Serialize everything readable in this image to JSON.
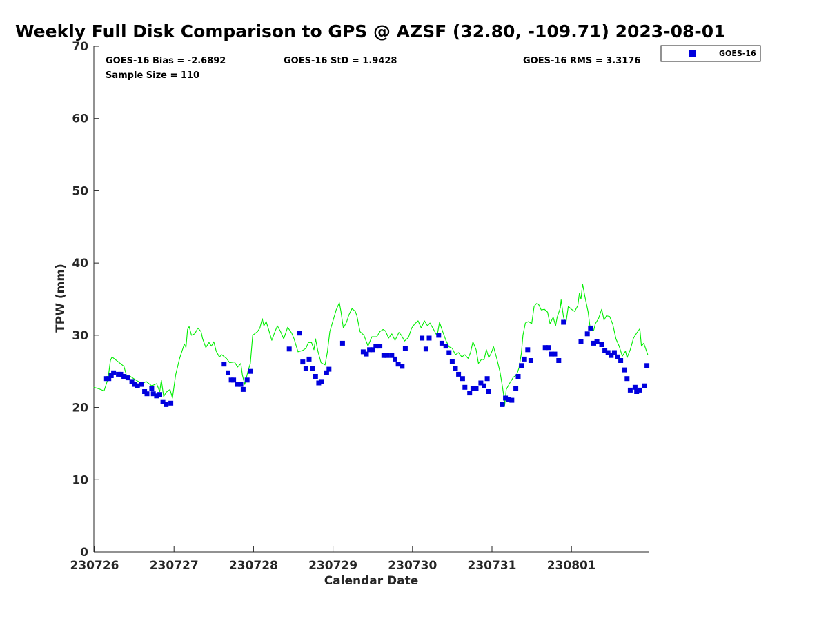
{
  "chart_data": {
    "type": "scatter",
    "title": "Weekly Full Disk Comparison to GPS @ AZSF (32.80, -109.71) 2023-08-01",
    "xlabel": "Calendar Date",
    "ylabel": "TPW (mm)",
    "xlim": [
      0,
      7
    ],
    "ylim": [
      0,
      70
    ],
    "yticks": [
      0,
      10,
      20,
      30,
      40,
      50,
      60,
      70
    ],
    "xtick_positions": [
      0,
      1,
      2,
      3,
      4,
      5,
      6
    ],
    "xtick_labels": [
      "230726",
      "230727",
      "230728",
      "230729",
      "230730",
      "230731",
      "230801"
    ],
    "stats": {
      "bias": "GOES-16 Bias = -2.6892",
      "std": "GOES-16 StD = 1.9428",
      "rms": "GOES-16 RMS = 3.3176",
      "sample": "Sample Size = 110"
    },
    "legend": {
      "label": "GOES-16",
      "location": "top-right (outside plot)"
    },
    "colors": {
      "goes": "#0000dd",
      "gps": "#00ee00",
      "axis": "#262626"
    },
    "series": [
      {
        "name": "GPS",
        "style": "line",
        "points": [
          [
            -0.01,
            22.8
          ],
          [
            0.05,
            22.6
          ],
          [
            0.12,
            22.3
          ],
          [
            0.17,
            24.0
          ],
          [
            0.2,
            26.5
          ],
          [
            0.22,
            27.0
          ],
          [
            0.3,
            26.3
          ],
          [
            0.37,
            25.7
          ],
          [
            0.4,
            24.5
          ],
          [
            0.45,
            24.3
          ],
          [
            0.52,
            23.8
          ],
          [
            0.6,
            23.3
          ],
          [
            0.65,
            23.6
          ],
          [
            0.72,
            23.0
          ],
          [
            0.78,
            23.3
          ],
          [
            0.82,
            22.2
          ],
          [
            0.84,
            23.8
          ],
          [
            0.87,
            21.5
          ],
          [
            0.9,
            22.1
          ],
          [
            0.95,
            22.5
          ],
          [
            0.98,
            21.3
          ],
          [
            1.02,
            24.5
          ],
          [
            1.07,
            26.8
          ],
          [
            1.13,
            28.8
          ],
          [
            1.15,
            28.3
          ],
          [
            1.17,
            30.8
          ],
          [
            1.19,
            31.2
          ],
          [
            1.22,
            30.0
          ],
          [
            1.26,
            30.2
          ],
          [
            1.3,
            31.0
          ],
          [
            1.34,
            30.5
          ],
          [
            1.36,
            29.5
          ],
          [
            1.4,
            28.3
          ],
          [
            1.44,
            29.0
          ],
          [
            1.47,
            28.5
          ],
          [
            1.5,
            29.1
          ],
          [
            1.53,
            27.8
          ],
          [
            1.57,
            27.0
          ],
          [
            1.6,
            27.3
          ],
          [
            1.66,
            26.8
          ],
          [
            1.7,
            26.2
          ],
          [
            1.76,
            26.3
          ],
          [
            1.8,
            25.6
          ],
          [
            1.84,
            26.1
          ],
          [
            1.86,
            24.5
          ],
          [
            1.89,
            23.2
          ],
          [
            1.93,
            25.0
          ],
          [
            1.96,
            26.1
          ],
          [
            1.99,
            30.0
          ],
          [
            2.05,
            30.5
          ],
          [
            2.08,
            31.0
          ],
          [
            2.11,
            32.3
          ],
          [
            2.13,
            31.3
          ],
          [
            2.16,
            31.9
          ],
          [
            2.19,
            30.8
          ],
          [
            2.23,
            29.3
          ],
          [
            2.27,
            30.5
          ],
          [
            2.3,
            31.3
          ],
          [
            2.34,
            30.5
          ],
          [
            2.38,
            29.5
          ],
          [
            2.43,
            31.1
          ],
          [
            2.48,
            30.3
          ],
          [
            2.51,
            29.5
          ],
          [
            2.56,
            27.7
          ],
          [
            2.62,
            27.9
          ],
          [
            2.66,
            28.2
          ],
          [
            2.69,
            29.0
          ],
          [
            2.73,
            29.0
          ],
          [
            2.76,
            28.0
          ],
          [
            2.78,
            29.5
          ],
          [
            2.81,
            27.8
          ],
          [
            2.85,
            26.2
          ],
          [
            2.9,
            25.9
          ],
          [
            2.93,
            27.7
          ],
          [
            2.96,
            30.5
          ],
          [
            3.0,
            32.0
          ],
          [
            3.04,
            33.5
          ],
          [
            3.08,
            34.5
          ],
          [
            3.1,
            33.3
          ],
          [
            3.13,
            31.0
          ],
          [
            3.17,
            31.8
          ],
          [
            3.2,
            32.8
          ],
          [
            3.24,
            33.7
          ],
          [
            3.28,
            33.3
          ],
          [
            3.3,
            32.7
          ],
          [
            3.34,
            30.5
          ],
          [
            3.39,
            30.0
          ],
          [
            3.44,
            28.5
          ],
          [
            3.49,
            29.8
          ],
          [
            3.55,
            29.8
          ],
          [
            3.59,
            30.5
          ],
          [
            3.63,
            30.8
          ],
          [
            3.66,
            30.6
          ],
          [
            3.7,
            29.6
          ],
          [
            3.74,
            30.2
          ],
          [
            3.78,
            29.3
          ],
          [
            3.83,
            30.4
          ],
          [
            3.86,
            30.0
          ],
          [
            3.9,
            29.2
          ],
          [
            3.95,
            29.7
          ],
          [
            3.99,
            31.0
          ],
          [
            4.03,
            31.6
          ],
          [
            4.07,
            32.0
          ],
          [
            4.11,
            31.0
          ],
          [
            4.15,
            32.0
          ],
          [
            4.19,
            31.3
          ],
          [
            4.22,
            31.7
          ],
          [
            4.26,
            30.9
          ],
          [
            4.31,
            29.9
          ],
          [
            4.34,
            31.8
          ],
          [
            4.38,
            30.5
          ],
          [
            4.42,
            29.3
          ],
          [
            4.46,
            28.4
          ],
          [
            4.5,
            28.2
          ],
          [
            4.54,
            27.3
          ],
          [
            4.58,
            27.6
          ],
          [
            4.62,
            27.0
          ],
          [
            4.66,
            27.3
          ],
          [
            4.7,
            26.8
          ],
          [
            4.73,
            27.6
          ],
          [
            4.76,
            29.1
          ],
          [
            4.8,
            28.0
          ],
          [
            4.83,
            26.1
          ],
          [
            4.87,
            26.7
          ],
          [
            4.9,
            26.6
          ],
          [
            4.93,
            28.0
          ],
          [
            4.96,
            26.9
          ],
          [
            4.99,
            27.5
          ],
          [
            5.02,
            28.4
          ],
          [
            5.06,
            26.8
          ],
          [
            5.1,
            25.0
          ],
          [
            5.13,
            23.0
          ],
          [
            5.15,
            21.5
          ],
          [
            5.16,
            20.3
          ],
          [
            5.18,
            22.5
          ],
          [
            5.23,
            23.5
          ],
          [
            5.27,
            24.2
          ],
          [
            5.31,
            24.5
          ],
          [
            5.34,
            25.5
          ],
          [
            5.37,
            27.5
          ],
          [
            5.39,
            30.0
          ],
          [
            5.42,
            31.7
          ],
          [
            5.46,
            31.9
          ],
          [
            5.5,
            31.6
          ],
          [
            5.53,
            34.0
          ],
          [
            5.56,
            34.4
          ],
          [
            5.59,
            34.2
          ],
          [
            5.62,
            33.5
          ],
          [
            5.66,
            33.6
          ],
          [
            5.7,
            33.2
          ],
          [
            5.73,
            31.6
          ],
          [
            5.77,
            32.5
          ],
          [
            5.8,
            31.3
          ],
          [
            5.82,
            32.5
          ],
          [
            5.86,
            33.8
          ],
          [
            5.87,
            34.9
          ],
          [
            5.9,
            32.5
          ],
          [
            5.93,
            31.6
          ],
          [
            5.96,
            34.0
          ],
          [
            6.0,
            33.6
          ],
          [
            6.04,
            33.3
          ],
          [
            6.08,
            34.1
          ],
          [
            6.1,
            35.8
          ],
          [
            6.12,
            35.0
          ],
          [
            6.14,
            37.1
          ],
          [
            6.17,
            35.3
          ],
          [
            6.21,
            33.2
          ],
          [
            6.24,
            30.6
          ],
          [
            6.28,
            30.7
          ],
          [
            6.3,
            31.6
          ],
          [
            6.34,
            32.3
          ],
          [
            6.38,
            33.6
          ],
          [
            6.41,
            32.1
          ],
          [
            6.44,
            32.7
          ],
          [
            6.48,
            32.6
          ],
          [
            6.52,
            31.5
          ],
          [
            6.56,
            29.5
          ],
          [
            6.6,
            28.5
          ],
          [
            6.64,
            27.1
          ],
          [
            6.68,
            27.8
          ],
          [
            6.7,
            26.9
          ],
          [
            6.74,
            28.0
          ],
          [
            6.78,
            29.6
          ],
          [
            6.82,
            30.3
          ],
          [
            6.86,
            30.9
          ],
          [
            6.88,
            28.5
          ],
          [
            6.91,
            28.9
          ],
          [
            6.96,
            27.3
          ]
        ]
      },
      {
        "name": "GOES-16",
        "style": "marker",
        "points": [
          [
            0.15,
            24.0
          ],
          [
            0.18,
            24.0
          ],
          [
            0.21,
            24.4
          ],
          [
            0.24,
            24.8
          ],
          [
            0.3,
            24.6
          ],
          [
            0.33,
            24.6
          ],
          [
            0.37,
            24.3
          ],
          [
            0.42,
            24.1
          ],
          [
            0.47,
            23.6
          ],
          [
            0.5,
            23.2
          ],
          [
            0.54,
            23.0
          ],
          [
            0.59,
            23.2
          ],
          [
            0.63,
            22.2
          ],
          [
            0.66,
            21.9
          ],
          [
            0.72,
            22.6
          ],
          [
            0.74,
            21.9
          ],
          [
            0.78,
            21.6
          ],
          [
            0.82,
            21.8
          ],
          [
            0.86,
            20.8
          ],
          [
            0.9,
            20.4
          ],
          [
            0.96,
            20.6
          ],
          [
            1.63,
            26.0
          ],
          [
            1.68,
            24.8
          ],
          [
            1.72,
            23.8
          ],
          [
            1.75,
            23.8
          ],
          [
            1.8,
            23.2
          ],
          [
            1.84,
            23.2
          ],
          [
            1.87,
            22.5
          ],
          [
            1.92,
            23.8
          ],
          [
            1.96,
            25.0
          ],
          [
            2.45,
            28.1
          ],
          [
            2.58,
            30.3
          ],
          [
            2.62,
            26.3
          ],
          [
            2.66,
            25.4
          ],
          [
            2.7,
            26.7
          ],
          [
            2.74,
            25.4
          ],
          [
            2.78,
            24.3
          ],
          [
            2.82,
            23.4
          ],
          [
            2.86,
            23.6
          ],
          [
            2.92,
            24.8
          ],
          [
            2.95,
            25.3
          ],
          [
            3.12,
            28.9
          ],
          [
            3.38,
            27.7
          ],
          [
            3.42,
            27.4
          ],
          [
            3.46,
            28.0
          ],
          [
            3.5,
            28.0
          ],
          [
            3.54,
            28.5
          ],
          [
            3.59,
            28.5
          ],
          [
            3.64,
            27.2
          ],
          [
            3.68,
            27.2
          ],
          [
            3.74,
            27.2
          ],
          [
            3.78,
            26.7
          ],
          [
            3.82,
            26.0
          ],
          [
            3.87,
            25.7
          ],
          [
            3.91,
            28.2
          ],
          [
            4.12,
            29.6
          ],
          [
            4.17,
            28.1
          ],
          [
            4.21,
            29.6
          ],
          [
            4.33,
            30.0
          ],
          [
            4.37,
            28.9
          ],
          [
            4.42,
            28.5
          ],
          [
            4.46,
            27.6
          ],
          [
            4.5,
            26.4
          ],
          [
            4.54,
            25.4
          ],
          [
            4.58,
            24.6
          ],
          [
            4.63,
            24.0
          ],
          [
            4.66,
            22.8
          ],
          [
            4.72,
            22.0
          ],
          [
            4.76,
            22.6
          ],
          [
            4.8,
            22.6
          ],
          [
            4.86,
            23.4
          ],
          [
            4.9,
            23.0
          ],
          [
            4.94,
            24.0
          ],
          [
            4.96,
            22.2
          ],
          [
            5.13,
            20.4
          ],
          [
            5.17,
            21.3
          ],
          [
            5.21,
            21.1
          ],
          [
            5.25,
            21.0
          ],
          [
            5.3,
            22.6
          ],
          [
            5.33,
            24.3
          ],
          [
            5.37,
            25.8
          ],
          [
            5.41,
            26.7
          ],
          [
            5.45,
            28.0
          ],
          [
            5.49,
            26.5
          ],
          [
            5.67,
            28.3
          ],
          [
            5.71,
            28.3
          ],
          [
            5.75,
            27.4
          ],
          [
            5.79,
            27.4
          ],
          [
            5.84,
            26.5
          ],
          [
            5.9,
            31.8
          ],
          [
            6.12,
            29.1
          ],
          [
            6.2,
            30.2
          ],
          [
            6.24,
            31.0
          ],
          [
            6.28,
            28.9
          ],
          [
            6.32,
            29.1
          ],
          [
            6.38,
            28.7
          ],
          [
            6.42,
            27.9
          ],
          [
            6.46,
            27.6
          ],
          [
            6.5,
            27.2
          ],
          [
            6.54,
            27.6
          ],
          [
            6.58,
            27.0
          ],
          [
            6.62,
            26.5
          ],
          [
            6.67,
            25.2
          ],
          [
            6.7,
            24.0
          ],
          [
            6.74,
            22.4
          ],
          [
            6.8,
            22.8
          ],
          [
            6.82,
            22.2
          ],
          [
            6.86,
            22.4
          ],
          [
            6.92,
            23.0
          ],
          [
            6.95,
            25.8
          ]
        ]
      }
    ]
  }
}
